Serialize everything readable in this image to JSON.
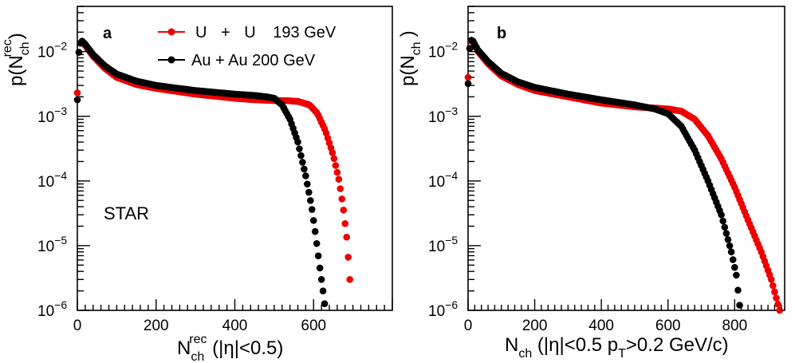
{
  "colors": {
    "uu": "#ee0000",
    "auau": "#000000",
    "axis": "#000000"
  },
  "chart_data": [
    {
      "type": "scatter",
      "panel": "a",
      "yscale": "log",
      "xlim": [
        0,
        800
      ],
      "ylim": [
        1e-06,
        0.05
      ],
      "x_ticks": [
        0,
        200,
        400,
        600
      ],
      "x_tick_labels": [
        "0",
        "200",
        "400",
        "600"
      ],
      "y_ticks": [
        0.01,
        0.001,
        0.0001,
        1e-05,
        1e-06
      ],
      "y_tick_labels": [
        {
          "base": "10",
          "exp": "−2"
        },
        {
          "base": "10",
          "exp": "−3"
        },
        {
          "base": "10",
          "exp": "−4"
        },
        {
          "base": "10",
          "exp": "−5"
        },
        {
          "base": "10",
          "exp": "−6"
        }
      ],
      "ylabel": {
        "main": "p(N",
        "sub": "ch",
        "sup": "rec",
        "close": ")"
      },
      "xlabel": {
        "main": "N",
        "sub": "ch",
        "sup": "rec",
        "rest": " (|η|<0.5)"
      },
      "annotation": "STAR",
      "legend": [
        {
          "series": "U + U 193 GeV",
          "label_parts": [
            "U",
            "+",
            "U",
            "193 GeV"
          ]
        },
        {
          "series": "Au + Au 200 GeV",
          "label_parts": [
            "Au + Au 200 GeV"
          ]
        }
      ],
      "series": [
        {
          "name": "U + U 193 GeV",
          "color": "#ee0000",
          "x_range": [
            0,
            695
          ],
          "x_step": 4,
          "knots": [
            [
              0,
              0.0023
            ],
            [
              3,
              0.009
            ],
            [
              8,
              0.0135
            ],
            [
              12,
              0.014
            ],
            [
              20,
              0.0125
            ],
            [
              40,
              0.0085
            ],
            [
              70,
              0.0055
            ],
            [
              100,
              0.004
            ],
            [
              150,
              0.0031
            ],
            [
              200,
              0.0027
            ],
            [
              300,
              0.0022
            ],
            [
              400,
              0.0019
            ],
            [
              450,
              0.0018
            ],
            [
              500,
              0.00175
            ],
            [
              530,
              0.00175
            ],
            [
              560,
              0.0017
            ],
            [
              590,
              0.0015
            ],
            [
              610,
              0.0011
            ],
            [
              630,
              0.0006
            ],
            [
              650,
              0.00025
            ],
            [
              665,
              0.0001
            ],
            [
              675,
              4e-05
            ],
            [
              685,
              1.2e-05
            ],
            [
              692,
              3e-06
            ],
            [
              695,
              1.2e-06
            ]
          ]
        },
        {
          "name": "Au + Au 200 GeV",
          "color": "#000000",
          "x_range": [
            0,
            630
          ],
          "x_step": 4,
          "knots": [
            [
              0,
              0.0018
            ],
            [
              3,
              0.009
            ],
            [
              8,
              0.0135
            ],
            [
              12,
              0.0145
            ],
            [
              20,
              0.013
            ],
            [
              40,
              0.009
            ],
            [
              70,
              0.006
            ],
            [
              100,
              0.0045
            ],
            [
              150,
              0.0035
            ],
            [
              200,
              0.003
            ],
            [
              300,
              0.0025
            ],
            [
              400,
              0.0022
            ],
            [
              450,
              0.0021
            ],
            [
              480,
              0.002
            ],
            [
              500,
              0.0019
            ],
            [
              520,
              0.0015
            ],
            [
              540,
              0.0009
            ],
            [
              560,
              0.0004
            ],
            [
              580,
              0.00012
            ],
            [
              595,
              4e-05
            ],
            [
              605,
              1.5e-05
            ],
            [
              615,
              5e-06
            ],
            [
              625,
              1.8e-06
            ],
            [
              630,
              1e-06
            ]
          ]
        }
      ]
    },
    {
      "type": "scatter",
      "panel": "b",
      "yscale": "log",
      "xlim": [
        0,
        950
      ],
      "ylim": [
        1e-06,
        0.05
      ],
      "x_ticks": [
        0,
        200,
        400,
        600,
        800
      ],
      "x_tick_labels": [
        "0",
        "200",
        "400",
        "600",
        "800"
      ],
      "y_ticks": [
        0.01,
        0.001,
        0.0001,
        1e-05,
        1e-06
      ],
      "y_tick_labels": [
        {
          "base": "10",
          "exp": "−2"
        },
        {
          "base": "10",
          "exp": "−3"
        },
        {
          "base": "10",
          "exp": "−4"
        },
        {
          "base": "10",
          "exp": "−5"
        },
        {
          "base": "10",
          "exp": "−6"
        }
      ],
      "ylabel": {
        "main": "p(N",
        "sub": "ch",
        "close": ")"
      },
      "xlabel": {
        "main": "N",
        "sub": "ch",
        "mid": " (|η|<0.5 p",
        "sub2": "T",
        "rest": ">0.2 GeV/c)"
      },
      "series": [
        {
          "name": "U + U 193 GeV",
          "color": "#ee0000",
          "x_range": [
            0,
            935
          ],
          "x_step": 5,
          "knots": [
            [
              0,
              0.004
            ],
            [
              3,
              0.01
            ],
            [
              10,
              0.0145
            ],
            [
              15,
              0.014
            ],
            [
              30,
              0.01
            ],
            [
              60,
              0.0065
            ],
            [
              100,
              0.0042
            ],
            [
              150,
              0.0031
            ],
            [
              200,
              0.0025
            ],
            [
              300,
              0.002
            ],
            [
              400,
              0.0016
            ],
            [
              500,
              0.0014
            ],
            [
              600,
              0.0013
            ],
            [
              640,
              0.0012
            ],
            [
              680,
              0.0009
            ],
            [
              720,
              0.0005
            ],
            [
              760,
              0.00022
            ],
            [
              800,
              8e-05
            ],
            [
              840,
              2.5e-05
            ],
            [
              880,
              8e-06
            ],
            [
              910,
              3e-06
            ],
            [
              935,
              1e-06
            ]
          ]
        },
        {
          "name": "Au + Au 200 GeV",
          "color": "#000000",
          "x_range": [
            0,
            815
          ],
          "x_step": 5,
          "knots": [
            [
              0,
              0.0032
            ],
            [
              3,
              0.01
            ],
            [
              10,
              0.015
            ],
            [
              15,
              0.0145
            ],
            [
              30,
              0.0105
            ],
            [
              60,
              0.007
            ],
            [
              100,
              0.0046
            ],
            [
              150,
              0.0034
            ],
            [
              200,
              0.0028
            ],
            [
              300,
              0.0022
            ],
            [
              400,
              0.0018
            ],
            [
              500,
              0.0015
            ],
            [
              560,
              0.0013
            ],
            [
              600,
              0.0011
            ],
            [
              640,
              0.0007
            ],
            [
              680,
              0.0003
            ],
            [
              720,
              0.0001
            ],
            [
              760,
              3e-05
            ],
            [
              790,
              8e-06
            ],
            [
              805,
              3.5e-06
            ],
            [
              815,
              1.2e-06
            ]
          ]
        }
      ]
    }
  ]
}
